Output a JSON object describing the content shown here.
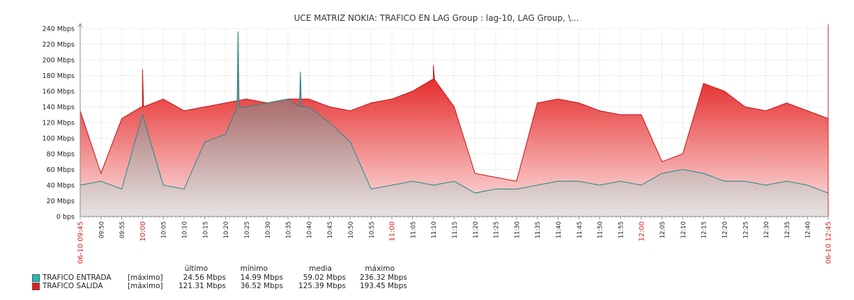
{
  "chart_data": {
    "type": "area",
    "title": "UCE MATRIZ NOKIA: TRAFICO EN LAG Group : lag-10, LAG Group, \\...",
    "xlabel": "",
    "ylabel": "",
    "y_unit": "Mbps",
    "ylim": [
      0,
      240
    ],
    "y_ticks": [
      0,
      20,
      40,
      60,
      80,
      100,
      120,
      140,
      160,
      180,
      200,
      220,
      240
    ],
    "y_tick_labels": [
      "0 bps",
      "20 Mbps",
      "40 Mbps",
      "60 Mbps",
      "80 Mbps",
      "100 Mbps",
      "120 Mbps",
      "140 Mbps",
      "160 Mbps",
      "180 Mbps",
      "200 Mbps",
      "220 Mbps",
      "240 Mbps"
    ],
    "x_range": [
      "06-10 09:45",
      "06-10 12:45"
    ],
    "x_tick_labels": [
      "06-10 09:45",
      "09:50",
      "09:55",
      "10:00",
      "10:05",
      "10:10",
      "10:15",
      "10:20",
      "10:25",
      "10:30",
      "10:35",
      "10:40",
      "10:45",
      "10:50",
      "10:55",
      "11:00",
      "11:05",
      "11:10",
      "11:15",
      "11:20",
      "11:25",
      "11:30",
      "11:35",
      "11:40",
      "11:45",
      "11:50",
      "11:55",
      "12:00",
      "12:05",
      "12:10",
      "12:15",
      "12:20",
      "12:25",
      "12:30",
      "12:35",
      "12:40",
      "06-10 12:45"
    ],
    "x_tick_highlight": [
      "06-10 09:45",
      "10:00",
      "11:00",
      "12:00",
      "06-10 12:45"
    ],
    "grid": true,
    "legend_position": "bottom-left",
    "times": [
      "09:45",
      "09:50",
      "09:55",
      "10:00",
      "10:05",
      "10:10",
      "10:15",
      "10:20",
      "10:25",
      "10:30",
      "10:35",
      "10:40",
      "10:45",
      "10:50",
      "10:55",
      "11:00",
      "11:05",
      "11:10",
      "11:15",
      "11:20",
      "11:25",
      "11:30",
      "11:35",
      "11:40",
      "11:45",
      "11:50",
      "11:55",
      "12:00",
      "12:05",
      "12:10",
      "12:15",
      "12:20",
      "12:25",
      "12:30",
      "12:35",
      "12:40",
      "12:45"
    ],
    "series": [
      {
        "name": "TRAFICO SALIDA",
        "color": "#e62020",
        "values": [
          135,
          55,
          125,
          140,
          150,
          135,
          140,
          145,
          150,
          145,
          150,
          150,
          140,
          135,
          145,
          150,
          160,
          175,
          140,
          55,
          50,
          45,
          145,
          150,
          145,
          135,
          130,
          130,
          70,
          80,
          170,
          160,
          140,
          135,
          145,
          135,
          125
        ]
      },
      {
        "name": "TRAFICO ENTRADA",
        "color": "#1fbcbc",
        "values": [
          40,
          45,
          35,
          130,
          40,
          35,
          95,
          105,
          140,
          145,
          150,
          140,
          120,
          95,
          35,
          40,
          45,
          40,
          45,
          30,
          35,
          35,
          40,
          45,
          45,
          40,
          45,
          40,
          55,
          60,
          55,
          45,
          45,
          40,
          45,
          40,
          30
        ]
      }
    ],
    "spikes": [
      {
        "series": "TRAFICO ENTRADA",
        "time": "10:23",
        "value": 236.32
      },
      {
        "series": "TRAFICO ENTRADA",
        "time": "10:38",
        "value": 185
      },
      {
        "series": "TRAFICO SALIDA",
        "time": "11:10",
        "value": 193.45
      },
      {
        "series": "TRAFICO SALIDA",
        "time": "10:00",
        "value": 188
      }
    ]
  },
  "legend": {
    "headers": {
      "ultimo": "último",
      "minimo": "mínimo",
      "media": "media",
      "maximo": "máximo"
    },
    "rows": [
      {
        "name": "TRAFICO ENTRADA",
        "func": "[máximo]",
        "ultimo": "24.56 Mbps",
        "minimo": "14.99 Mbps",
        "media": "59.02 Mbps",
        "maximo": "236.32 Mbps",
        "color": "#1fbcbc"
      },
      {
        "name": "TRAFICO SALIDA",
        "func": "[máximo]",
        "ultimo": "121.31 Mbps",
        "minimo": "36.52 Mbps",
        "media": "125.39 Mbps",
        "maximo": "193.45 Mbps",
        "color": "#e62020"
      }
    ]
  }
}
